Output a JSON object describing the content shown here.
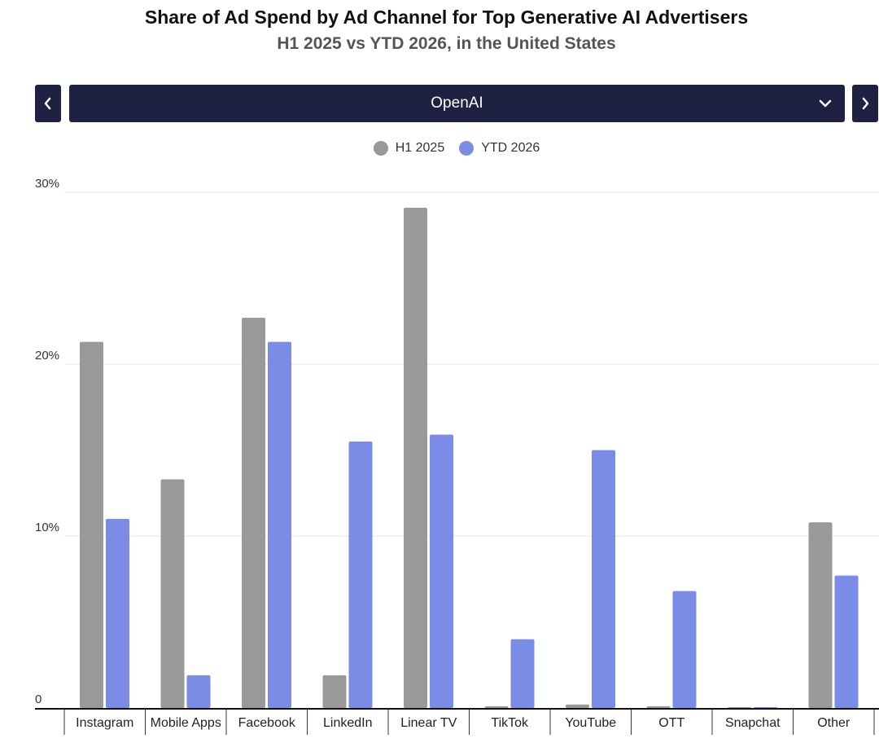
{
  "header": {
    "title": "Share of Ad Spend by Ad Channel for Top Generative AI Advertisers",
    "subtitle": "H1 2025 vs YTD 2026, in the United States"
  },
  "selector": {
    "selected": "OpenAI",
    "chevron_icon": "chevron-down-icon",
    "prev_icon": "chevron-left-icon",
    "next_icon": "chevron-right-icon"
  },
  "colors": {
    "selector_bg": "#1e2142",
    "series_h1_2025": "#999999",
    "series_ytd_2026": "#7b8ce6",
    "grid": "#e6e6e6",
    "axis": "#111111"
  },
  "chart_data": {
    "type": "bar",
    "categories": [
      "Instagram",
      "Mobile Apps",
      "Facebook",
      "LinkedIn",
      "Linear TV",
      "TikTok",
      "YouTube",
      "OTT",
      "Snapchat",
      "Other"
    ],
    "series": [
      {
        "name": "H1 2025",
        "color": "#999999",
        "values": [
          21.3,
          13.3,
          22.7,
          1.9,
          29.1,
          0.1,
          0.2,
          0.1,
          0.0,
          10.8
        ]
      },
      {
        "name": "YTD 2026",
        "color": "#7b8ce6",
        "values": [
          11.0,
          1.9,
          21.3,
          15.5,
          15.9,
          4.0,
          15.0,
          6.8,
          0.0,
          7.7
        ]
      }
    ],
    "ylim": [
      0,
      30
    ],
    "yticks": [
      {
        "value": 0,
        "label": "0"
      },
      {
        "value": 10,
        "label": "10%"
      },
      {
        "value": 20,
        "label": "20%"
      },
      {
        "value": 30,
        "label": "30%"
      }
    ],
    "grid": true,
    "legend_position": "top-center"
  }
}
